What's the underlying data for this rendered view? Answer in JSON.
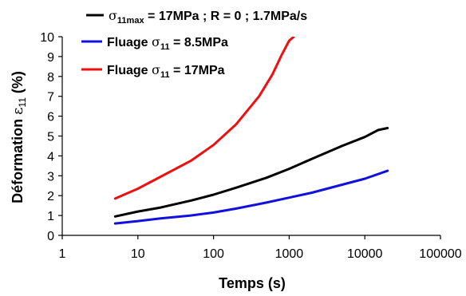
{
  "chart_data": {
    "type": "line",
    "xscale": "log",
    "xlim": [
      1,
      100000
    ],
    "ylim": [
      0,
      10
    ],
    "grid": false,
    "legend_position": "top",
    "xlabel": "Temps (s)",
    "ylabel_parts": {
      "main": "Déformation  ",
      "symbol": "ε",
      "subscript": "11",
      "unit": " (%)"
    },
    "x_ticks": [
      1,
      10,
      100,
      1000,
      10000,
      100000
    ],
    "x_tick_labels": [
      "1",
      "10",
      "100",
      "1000",
      "10000",
      "100000"
    ],
    "y_ticks": [
      0,
      1,
      2,
      3,
      4,
      5,
      6,
      7,
      8,
      9,
      10
    ],
    "y_tick_labels": [
      "0",
      "1",
      "2",
      "3",
      "4",
      "5",
      "6",
      "7",
      "8",
      "9",
      "10"
    ],
    "series": [
      {
        "legend": {
          "sym": "σ",
          "sub": "11max",
          "rest": " = 17MPa ; R = 0 ; 1.7MPa/s"
        },
        "color": "#000000",
        "x": [
          5,
          10,
          20,
          50,
          100,
          200,
          500,
          1000,
          2000,
          5000,
          10000,
          15000,
          20000
        ],
        "y": [
          0.95,
          1.2,
          1.4,
          1.75,
          2.05,
          2.4,
          2.9,
          3.35,
          3.85,
          4.5,
          4.95,
          5.3,
          5.4
        ]
      },
      {
        "legend": {
          "pre": "Fluage ",
          "sym": "σ",
          "sub": "11",
          "rest": " = 8.5MPa"
        },
        "color": "#1010e0",
        "x": [
          5,
          10,
          20,
          50,
          100,
          200,
          500,
          1000,
          2000,
          5000,
          10000,
          20000
        ],
        "y": [
          0.6,
          0.72,
          0.85,
          1.0,
          1.15,
          1.35,
          1.65,
          1.9,
          2.15,
          2.55,
          2.85,
          3.25
        ]
      },
      {
        "legend": {
          "pre": "Fluage ",
          "sym": "σ",
          "sub": "11",
          "rest": " = 17MPa"
        },
        "color": "#ee1010",
        "x": [
          5,
          10,
          20,
          50,
          100,
          200,
          400,
          600,
          800,
          1000,
          1150
        ],
        "y": [
          1.85,
          2.35,
          2.95,
          3.75,
          4.55,
          5.6,
          7.0,
          8.1,
          9.1,
          9.8,
          10.0
        ]
      }
    ]
  }
}
